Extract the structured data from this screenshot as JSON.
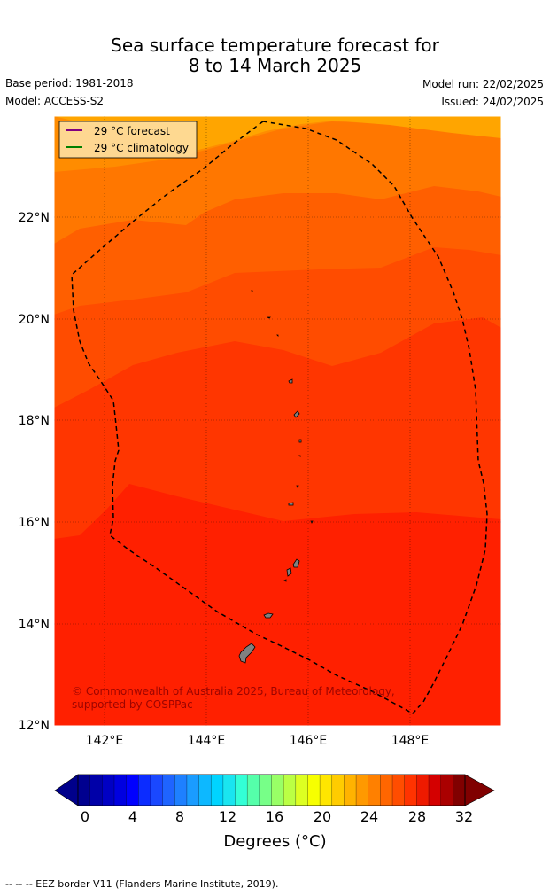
{
  "title_line1": "Sea surface temperature forecast for",
  "title_line2": "8 to 14 March 2025",
  "base_period": "Base period: 1981-2018",
  "model": "Model: ACCESS-S2",
  "model_run": "Model run: 22/02/2025",
  "issued": "Issued: 24/02/2025",
  "legend": {
    "forecast": "29 °C  forecast",
    "climatology": "29 °C  climatology",
    "forecast_color": "#800080",
    "climatology_color": "#008000"
  },
  "lat_labels": [
    "22°N",
    "20°N",
    "18°N",
    "16°N",
    "14°N",
    "12°N"
  ],
  "lon_labels": [
    "142°E",
    "144°E",
    "146°E",
    "148°E"
  ],
  "copyright": "© Commonwealth of Australia 2025, Bureau of Meteorology, supported by COSPPac",
  "colorbar": {
    "ticks": [
      "0",
      "4",
      "8",
      "12",
      "16",
      "20",
      "24",
      "28",
      "32"
    ],
    "label": "Degrees (°C)",
    "colors": [
      "#00008f",
      "#0000a8",
      "#0000c4",
      "#0000e0",
      "#0000ff",
      "#0c2cff",
      "#1a48ff",
      "#1f64ff",
      "#1e80ff",
      "#1a9cff",
      "#0db8ff",
      "#00d4ff",
      "#1ae5f0",
      "#33ffd6",
      "#55ffaa",
      "#77ff88",
      "#99ff66",
      "#bbff44",
      "#ddff22",
      "#f7ff00",
      "#ffe600",
      "#ffcc00",
      "#ffb300",
      "#ff9900",
      "#ff8000",
      "#ff6600",
      "#ff4d00",
      "#ff3300",
      "#ee1a00",
      "#d40000",
      "#aa0000",
      "#800000"
    ],
    "under_color": "#00008b",
    "over_color": "#800000"
  },
  "map_colors": [
    "#ffa500",
    "#ff8c00",
    "#ff7700",
    "#ff5f00",
    "#ff4c00",
    "#ff3600",
    "#ff2000"
  ],
  "eez_note": "--  --  -- EEZ border V11 (Flanders Marine Institute, 2019)."
}
